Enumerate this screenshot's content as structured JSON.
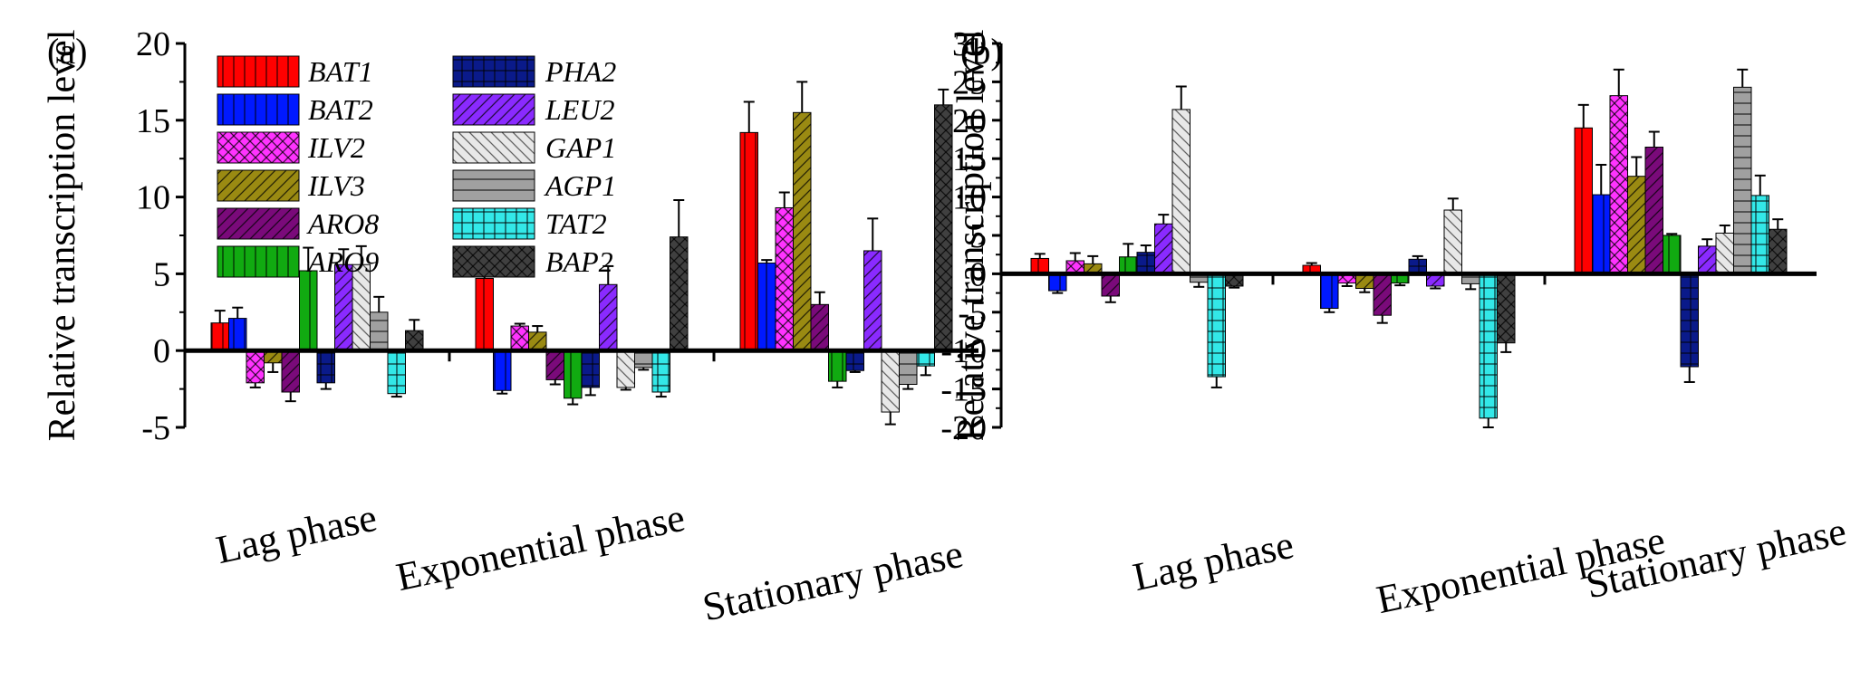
{
  "figure": {
    "series_names": [
      "BAT1",
      "BAT2",
      "ILV2",
      "ILV3",
      "ARO8",
      "ARO9",
      "PHA2",
      "LEU2",
      "GAP1",
      "AGP1",
      "TAT2",
      "BAP2"
    ],
    "series_colors": [
      "#ff0000",
      "#0019ff",
      "#ff33ff",
      "#9a8a12",
      "#7a0a7a",
      "#11aa11",
      "#0a1a8a",
      "#8a2aff",
      "#e8e8e8",
      "#a0a0a0",
      "#33e8e8",
      "#404040"
    ],
    "series_patterns": [
      "vlines-hline",
      "vlines",
      "crosshatch",
      "diag-right",
      "diag-right",
      "vlines",
      "grid",
      "diag-right",
      "diag-left",
      "hlines",
      "grid",
      "crosshatch"
    ]
  },
  "chart_data": [
    {
      "type": "bar",
      "panel_label": "(a)",
      "ylabel": "Relative transcription level",
      "xlabel": "",
      "ylim": [
        -5,
        20
      ],
      "yticks": [
        "-5",
        "0",
        "5",
        "10",
        "15",
        "20"
      ],
      "categories": [
        "Lag phase",
        "Exponential phase",
        "Stationary phase"
      ],
      "legend": "upper-left, two columns",
      "series": [
        {
          "name": "BAT1",
          "values": [
            1.8,
            4.7,
            14.2
          ],
          "errors": [
            0.8,
            1.5,
            2.0
          ]
        },
        {
          "name": "BAT2",
          "values": [
            2.1,
            -2.6,
            5.7
          ],
          "errors": [
            0.7,
            0.2,
            0.2
          ]
        },
        {
          "name": "ILV2",
          "values": [
            -2.1,
            1.6,
            9.3
          ],
          "errors": [
            0.3,
            0.15,
            1.0
          ]
        },
        {
          "name": "ILV3",
          "values": [
            -0.8,
            1.2,
            15.5
          ],
          "errors": [
            0.6,
            0.4,
            2.0
          ]
        },
        {
          "name": "ARO8",
          "values": [
            -2.7,
            -1.9,
            3.0
          ],
          "errors": [
            0.6,
            0.3,
            0.8
          ]
        },
        {
          "name": "ARO9",
          "values": [
            5.2,
            -3.1,
            -2.0
          ],
          "errors": [
            1.5,
            0.4,
            0.4
          ]
        },
        {
          "name": "PHA2",
          "values": [
            -2.1,
            -2.4,
            -1.3
          ],
          "errors": [
            0.4,
            0.5,
            0.1
          ]
        },
        {
          "name": "LEU2",
          "values": [
            5.6,
            4.3,
            6.5
          ],
          "errors": [
            1.0,
            1.2,
            2.1
          ]
        },
        {
          "name": "GAP1",
          "values": [
            5.6,
            -2.4,
            -4.0
          ],
          "errors": [
            1.2,
            0.15,
            0.8
          ]
        },
        {
          "name": "AGP1",
          "values": [
            2.5,
            -1.1,
            -2.2
          ],
          "errors": [
            1.0,
            0.15,
            0.3
          ]
        },
        {
          "name": "TAT2",
          "values": [
            -2.8,
            -2.7,
            -1.0
          ],
          "errors": [
            0.2,
            0.3,
            0.6
          ]
        },
        {
          "name": "BAP2",
          "values": [
            1.3,
            7.4,
            16.0
          ],
          "errors": [
            0.7,
            2.4,
            1.0
          ]
        }
      ]
    },
    {
      "type": "bar",
      "panel_label": "(b)",
      "ylabel": "Relative transcription level",
      "xlabel": "",
      "ylim": [
        -20,
        30
      ],
      "yticks": [
        "-20",
        "-15",
        "-10",
        "-5",
        "0",
        "5",
        "10",
        "15",
        "20",
        "25",
        "30"
      ],
      "categories": [
        "Lag phase",
        "Exponential phase",
        "Stationary phase"
      ],
      "series": [
        {
          "name": "BAT1",
          "values": [
            2.0,
            1.1,
            19.0
          ],
          "errors": [
            0.6,
            0.3,
            3.0
          ]
        },
        {
          "name": "BAT2",
          "values": [
            -2.2,
            -4.5,
            10.3
          ],
          "errors": [
            0.3,
            0.5,
            3.9
          ]
        },
        {
          "name": "ILV2",
          "values": [
            1.7,
            -1.2,
            23.2
          ],
          "errors": [
            1.0,
            0.4,
            3.4
          ]
        },
        {
          "name": "ILV3",
          "values": [
            1.3,
            -1.9,
            12.7
          ],
          "errors": [
            1.0,
            0.5,
            2.5
          ]
        },
        {
          "name": "ARO8",
          "values": [
            -2.9,
            -5.4,
            16.5
          ],
          "errors": [
            0.8,
            1.0,
            2.0
          ]
        },
        {
          "name": "ARO9",
          "values": [
            2.2,
            -1.2,
            5.0
          ],
          "errors": [
            1.7,
            0.3,
            0.2
          ]
        },
        {
          "name": "PHA2",
          "values": [
            2.8,
            1.9,
            -12.1
          ],
          "errors": [
            0.9,
            0.4,
            2.0
          ]
        },
        {
          "name": "LEU2",
          "values": [
            6.5,
            -1.6,
            3.6
          ],
          "errors": [
            1.2,
            0.3,
            0.9
          ]
        },
        {
          "name": "GAP1",
          "values": [
            21.4,
            8.3,
            5.3
          ],
          "errors": [
            3.0,
            1.5,
            1.0
          ]
        },
        {
          "name": "AGP1",
          "values": [
            -1.1,
            -1.3,
            24.3
          ],
          "errors": [
            0.6,
            0.7,
            2.3
          ]
        },
        {
          "name": "TAT2",
          "values": [
            -13.4,
            -18.8,
            10.2
          ],
          "errors": [
            1.4,
            1.2,
            2.6
          ]
        },
        {
          "name": "BAP2",
          "values": [
            -1.6,
            -9.0,
            5.8
          ],
          "errors": [
            0.2,
            1.2,
            1.3
          ]
        }
      ]
    }
  ]
}
